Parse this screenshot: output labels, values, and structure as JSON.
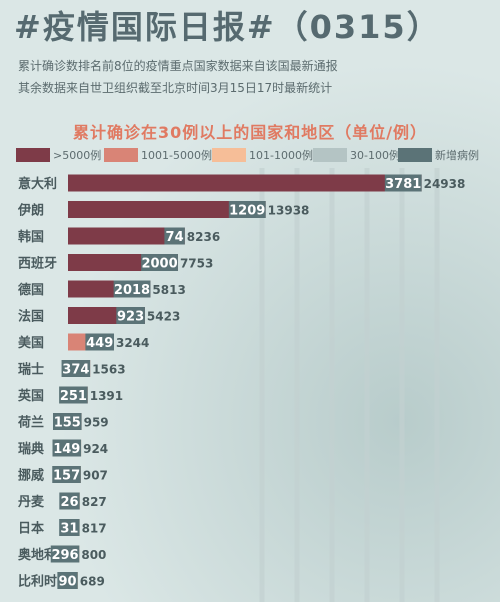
{
  "header": {
    "title": "#疫情国际日报#（0315）",
    "note_line1": "累计确诊数排名前8位的疫情重点国家数据来自该国最新通报",
    "note_line2": "其余数据来自世卫组织截至北京时间3月15日17时最新统计"
  },
  "legend": [
    {
      "label": ">5000例",
      "color": "#7e3b48"
    },
    {
      "label": "1001-5000例",
      "color": "#d98476"
    },
    {
      "label": "101-1000例",
      "color": "#f6be98"
    },
    {
      "label": "30-100例",
      "color": "#b4c4c4"
    },
    {
      "label": "新增病例",
      "color": "#5b7377"
    }
  ],
  "chart_data": {
    "type": "bar",
    "orientation": "horizontal",
    "title": "累计确诊在30例以上的国家和地区（单位/例）",
    "categories": [
      "意大利",
      "伊朗",
      "韩国",
      "西班牙",
      "德国",
      "法国",
      "美国",
      "瑞士",
      "英国",
      "荷兰",
      "瑞典",
      "挪威",
      "丹麦",
      "日本",
      "奥地利",
      "比利时"
    ],
    "series": [
      {
        "name": "累计确诊",
        "values": [
          24938,
          13938,
          8236,
          7753,
          5813,
          5423,
          3244,
          1563,
          1391,
          959,
          924,
          907,
          827,
          817,
          800,
          689
        ]
      },
      {
        "name": "新增病例",
        "values": [
          3781,
          1209,
          74,
          2000,
          2018,
          923,
          449,
          374,
          251,
          155,
          149,
          157,
          26,
          31,
          296,
          90
        ]
      }
    ],
    "bar_colors": [
      "#7e3b48",
      "#7e3b48",
      "#7e3b48",
      "#7e3b48",
      "#7e3b48",
      "#7e3b48",
      "#d98476",
      "#d98476",
      "#d98476",
      "#f6be98",
      "#f6be98",
      "#f6be98",
      "#f6be98",
      "#f6be98",
      "#f6be98",
      "#f6be98"
    ],
    "new_case_label_color": "#5b7377",
    "grid": true,
    "legend_position": "top"
  }
}
